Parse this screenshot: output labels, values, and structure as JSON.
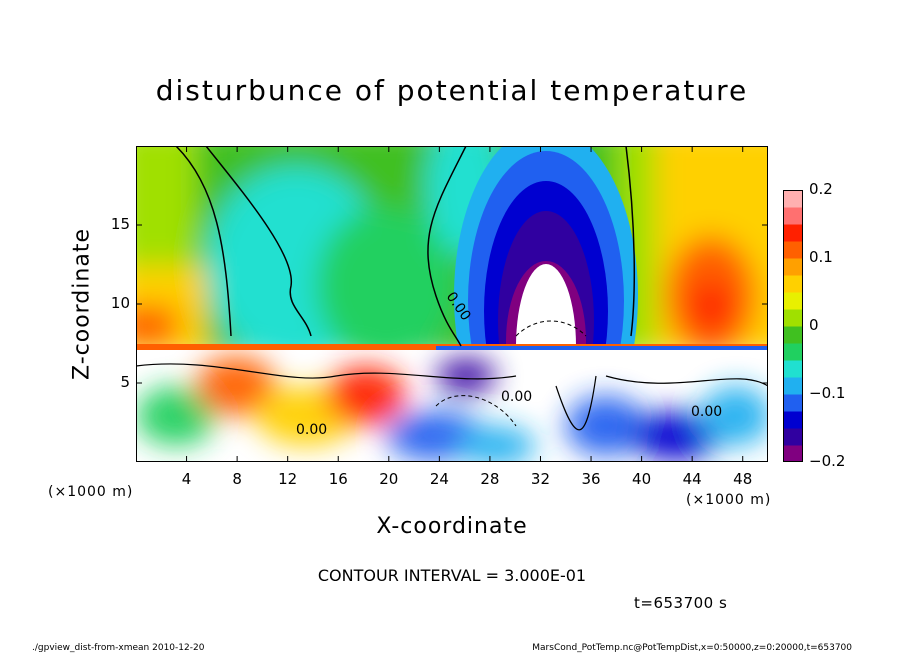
{
  "chart_data": {
    "type": "heatmap",
    "title": "disturbunce of potential temperature",
    "xlabel": "X-coordinate",
    "ylabel": "Z-coordinate",
    "x_unit_left": "(×1000 m)",
    "x_unit_right": "(×1000 m)",
    "xlim": [
      0,
      50
    ],
    "ylim": [
      0,
      20
    ],
    "x_ticks": [
      4,
      8,
      12,
      16,
      20,
      24,
      28,
      32,
      36,
      40,
      44,
      48
    ],
    "y_ticks": [
      5,
      10,
      15
    ],
    "colorbar": {
      "range": [
        -0.2,
        0.2
      ],
      "ticks": [
        0.2,
        0.1,
        0,
        -0.1,
        -0.2
      ],
      "tick_labels": [
        "0.2",
        "0.1",
        "0",
        "−0.1",
        "−0.2"
      ],
      "colors": [
        "#800080",
        "#3000a0",
        "#0000d0",
        "#2060f0",
        "#20b0f0",
        "#20e0d0",
        "#20d060",
        "#40c020",
        "#a0e000",
        "#e8f000",
        "#ffd000",
        "#ffa000",
        "#ff6000",
        "#ff2000",
        "#ff7070",
        "#ffb0b0"
      ]
    },
    "contour_interval": "CONTOUR INTERVAL = 3.000E-01",
    "contour_labels": [
      "0.00",
      "0.00",
      "0.00",
      "0.00"
    ]
  },
  "time_label": "t=653700 s",
  "footer": {
    "left": "./gpview_dist-from-xmean  2010-12-20",
    "right": "MarsCond_PotTemp.nc@PotTempDist,x=0:50000,z=0:20000,t=653700"
  }
}
